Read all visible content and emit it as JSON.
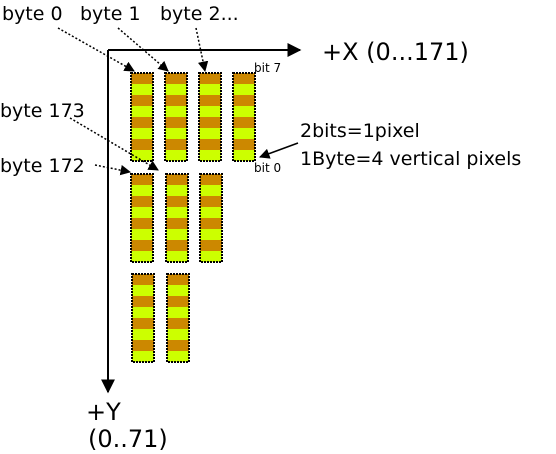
{
  "labels": {
    "byte0": "byte 0",
    "byte1": "byte 1",
    "byte2": "byte 2...",
    "byte173": "byte 173",
    "byte172": "byte 172",
    "bit7": "bit 7",
    "bit0": "bit 0",
    "x_axis": "+X (0...171)",
    "y_axis_top": "+Y",
    "y_axis_bottom": "(0..71)",
    "note_line1": "2bits=1pixel",
    "note_line2": "1Byte=4 vertical pixels"
  },
  "byte_grid": {
    "rows": [
      {
        "row": 0,
        "bytes_shown": 4
      },
      {
        "row": 1,
        "bytes_shown": 3
      },
      {
        "row": 2,
        "bytes_shown": 2
      }
    ],
    "bits_per_byte": 8,
    "bits_per_pixel": 2,
    "pixels_per_byte": 4
  },
  "colors": {
    "even_bit": "#cc8800",
    "odd_bit": "#ccff00",
    "outline": "#000000",
    "axis": "#000000"
  }
}
